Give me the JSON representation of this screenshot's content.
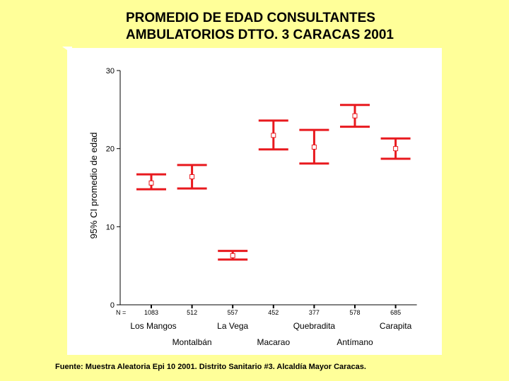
{
  "title_lines": [
    "PROMEDIO DE EDAD CONSULTANTES",
    "AMBULATORIOS DTTO. 3 CARACAS 2001"
  ],
  "footer": "Fuente: Muestra Aleatoria Epi 10 2001.  Distrito Sanitario #3. Alcaldía Mayor Caracas.",
  "colors": {
    "errorbar": "#E8191E",
    "background": "#FFFF99",
    "panel": "#FFFFFF"
  },
  "chart_data": {
    "type": "errorbar",
    "title": "PROMEDIO DE EDAD CONSULTANTES AMBULATORIOS DTTO. 3 CARACAS 2001",
    "ylabel": "95% CI promedio de edad",
    "xlabel": "",
    "ylim": [
      0,
      30
    ],
    "yticks": [
      0,
      10,
      20,
      30
    ],
    "n_prefix": "N =",
    "categories": [
      "Los Mangos",
      "Montalbán",
      "La Vega",
      "Macarao",
      "Quebradita",
      "Antímano",
      "Carapita"
    ],
    "n": [
      "1083",
      "512",
      "557",
      "452",
      "377",
      "578",
      "685"
    ],
    "mean": [
      15.6,
      16.4,
      6.3,
      21.7,
      20.2,
      24.2,
      20.0
    ],
    "lower": [
      14.8,
      14.9,
      5.8,
      19.9,
      18.1,
      22.8,
      18.7
    ],
    "upper": [
      16.7,
      17.9,
      6.9,
      23.6,
      22.4,
      25.6,
      21.3
    ],
    "grid": false,
    "legend": "none"
  }
}
